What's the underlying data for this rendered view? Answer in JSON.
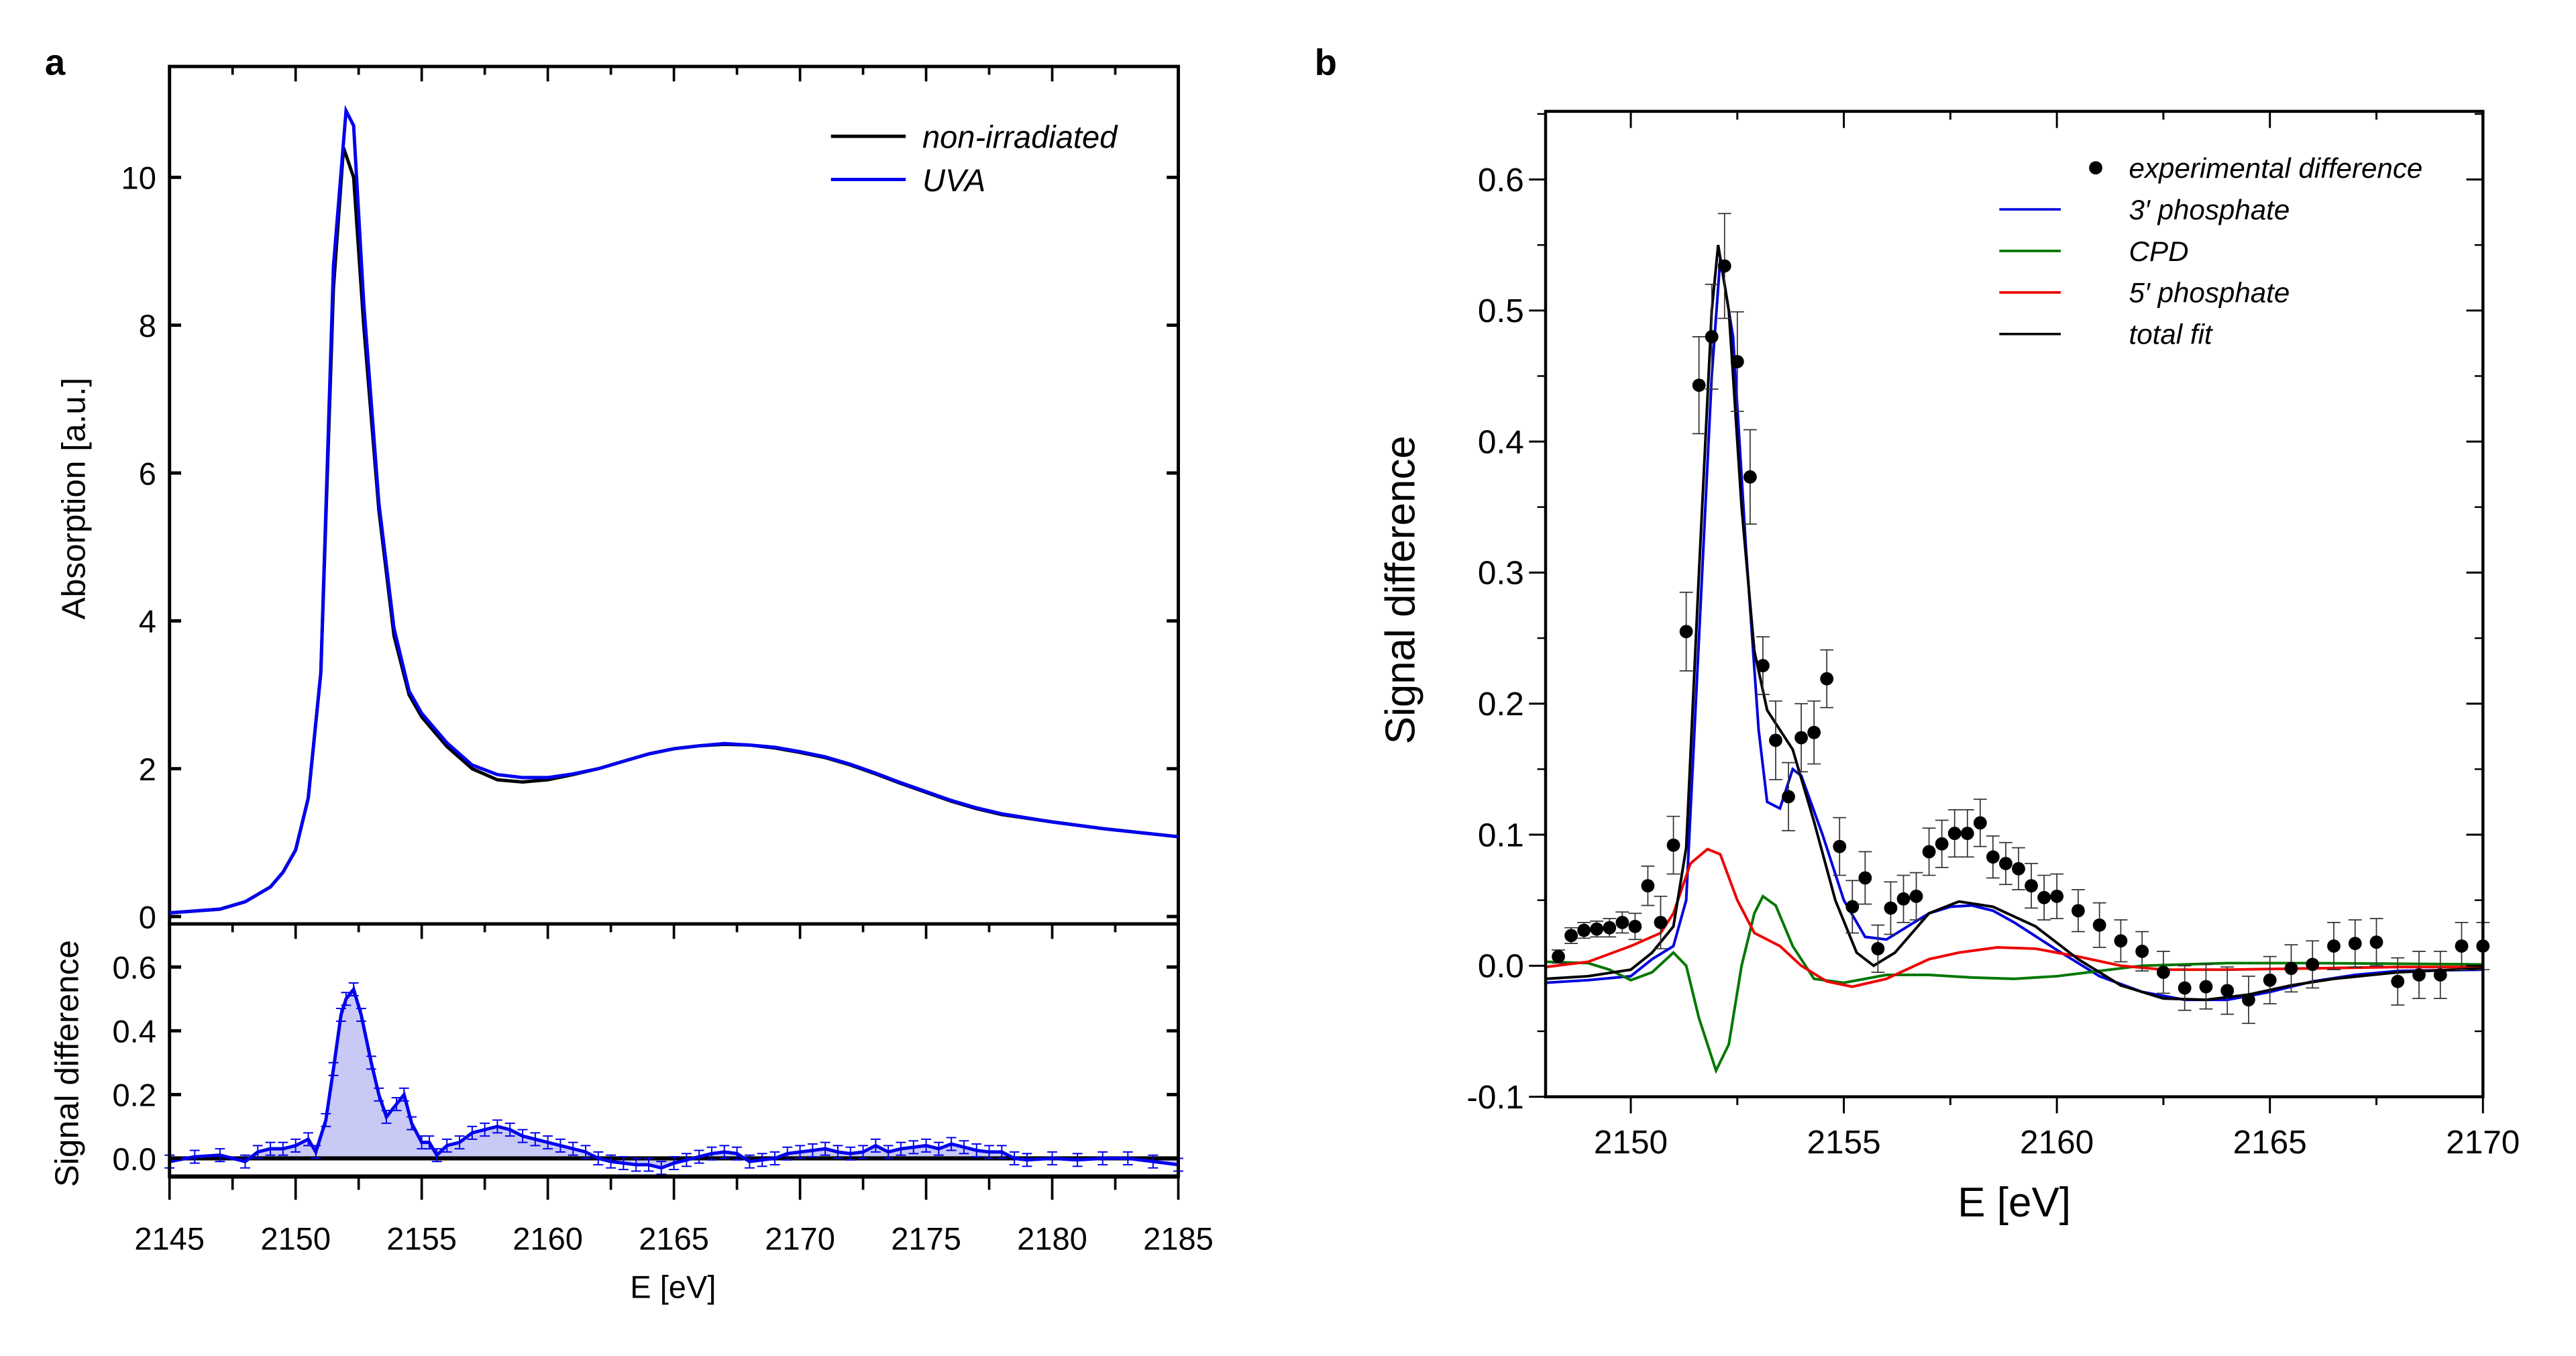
{
  "panels": {
    "a": "a",
    "b": "b"
  },
  "colors": {
    "non_irradiated": "#000000",
    "uva": "#0000ee",
    "uva_fill": "#c9c9f6",
    "experimental": "#000000",
    "phosphate3": "#0000dd",
    "cpd": "#007700",
    "phosphate5": "#ee0000",
    "total_fit": "#000000"
  },
  "chart_data": [
    {
      "id": "a-top",
      "type": "line",
      "title": "",
      "xlabel": "",
      "ylabel": "Absorption [a.u.]",
      "xlim": [
        2145,
        2185
      ],
      "ylim": [
        -0.1,
        11.5
      ],
      "yticks": [
        "0",
        "2",
        "4",
        "6",
        "8",
        "10"
      ],
      "legend_position": "top-right",
      "grid": false,
      "series": [
        {
          "name": "non-irradiated",
          "color": "#000000",
          "x": [
            2145,
            2147,
            2148,
            2149,
            2149.5,
            2150,
            2150.5,
            2151,
            2151.5,
            2151.9,
            2152.3,
            2152.7,
            2153.3,
            2153.9,
            2154.5,
            2155,
            2156,
            2157,
            2158,
            2159,
            2160,
            2161,
            2162,
            2163,
            2164,
            2165,
            2166,
            2167,
            2168,
            2169,
            2170,
            2171,
            2172,
            2173,
            2174,
            2175,
            2176,
            2177,
            2178,
            2180,
            2182,
            2185
          ],
          "y": [
            0.05,
            0.1,
            0.2,
            0.4,
            0.6,
            0.9,
            1.6,
            3.3,
            8.5,
            10.4,
            10.0,
            8.0,
            5.5,
            3.8,
            3.0,
            2.7,
            2.3,
            2.0,
            1.85,
            1.82,
            1.85,
            1.92,
            2.0,
            2.1,
            2.2,
            2.27,
            2.31,
            2.33,
            2.32,
            2.28,
            2.22,
            2.15,
            2.05,
            1.93,
            1.8,
            1.68,
            1.56,
            1.46,
            1.38,
            1.28,
            1.19,
            1.08
          ]
        },
        {
          "name": "UVA",
          "color": "#0000ee",
          "x": [
            2145,
            2147,
            2148,
            2149,
            2149.5,
            2150,
            2150.5,
            2151,
            2151.5,
            2152.0,
            2152.3,
            2152.7,
            2153.3,
            2153.9,
            2154.5,
            2155,
            2156,
            2157,
            2158,
            2159,
            2160,
            2161,
            2162,
            2163,
            2164,
            2165,
            2166,
            2167,
            2168,
            2169,
            2170,
            2171,
            2172,
            2173,
            2174,
            2175,
            2176,
            2177,
            2178,
            2180,
            2182,
            2185
          ],
          "y": [
            0.05,
            0.1,
            0.2,
            0.4,
            0.6,
            0.9,
            1.6,
            3.3,
            8.8,
            10.9,
            10.7,
            8.3,
            5.6,
            3.9,
            3.05,
            2.75,
            2.35,
            2.05,
            1.92,
            1.88,
            1.88,
            1.93,
            2.0,
            2.1,
            2.2,
            2.27,
            2.31,
            2.34,
            2.32,
            2.29,
            2.23,
            2.16,
            2.06,
            1.94,
            1.81,
            1.69,
            1.57,
            1.47,
            1.39,
            1.28,
            1.19,
            1.08
          ]
        }
      ]
    },
    {
      "id": "a-bottom",
      "type": "area",
      "title": "",
      "xlabel": "E [eV]",
      "ylabel": "Signal difference",
      "xlim": [
        2145,
        2185
      ],
      "ylim": [
        -0.057,
        0.735
      ],
      "xticks": [
        "2145",
        "2150",
        "2155",
        "2160",
        "2165",
        "2170",
        "2175",
        "2180",
        "2185"
      ],
      "yticks": [
        "0.0",
        "0.2",
        "0.4",
        "0.6"
      ],
      "grid": false,
      "series": [
        {
          "color": "#0000ee",
          "x": [
            2145,
            2146,
            2147,
            2148,
            2148.5,
            2149,
            2149.5,
            2150,
            2150.5,
            2150.8,
            2151.2,
            2151.5,
            2151.8,
            2152,
            2152.3,
            2152.6,
            2153,
            2153.3,
            2153.6,
            2154,
            2154.3,
            2154.6,
            2155,
            2155.3,
            2155.6,
            2156,
            2156.5,
            2157,
            2157.5,
            2158,
            2158.5,
            2159,
            2159.5,
            2160,
            2160.5,
            2161,
            2161.5,
            2162,
            2162.5,
            2163,
            2163.5,
            2164,
            2164.5,
            2165,
            2165.5,
            2166,
            2166.5,
            2167,
            2167.5,
            2168,
            2168.5,
            2169,
            2169.5,
            2170,
            2170.5,
            2171,
            2171.5,
            2172,
            2172.5,
            2173,
            2173.5,
            2174,
            2174.5,
            2175,
            2175.5,
            2176,
            2176.5,
            2177,
            2177.5,
            2178,
            2178.5,
            2179,
            2180,
            2181,
            2182,
            2183,
            2184,
            2185
          ],
          "y": [
            -0.01,
            0.005,
            0.01,
            -0.01,
            0.02,
            0.03,
            0.03,
            0.04,
            0.06,
            0.02,
            0.12,
            0.28,
            0.45,
            0.5,
            0.53,
            0.45,
            0.3,
            0.2,
            0.13,
            0.17,
            0.2,
            0.11,
            0.05,
            0.05,
            0.01,
            0.04,
            0.05,
            0.08,
            0.09,
            0.1,
            0.09,
            0.07,
            0.06,
            0.05,
            0.04,
            0.03,
            0.02,
            0.0,
            -0.01,
            -0.015,
            -0.02,
            -0.02,
            -0.03,
            -0.015,
            -0.005,
            0.005,
            0.015,
            0.02,
            0.015,
            -0.01,
            -0.005,
            0.0,
            0.015,
            0.02,
            0.025,
            0.03,
            0.02,
            0.015,
            0.02,
            0.04,
            0.02,
            0.03,
            0.035,
            0.04,
            0.03,
            0.045,
            0.035,
            0.025,
            0.02,
            0.02,
            0.0,
            -0.005,
            0.0,
            -0.005,
            0.0,
            0.0,
            -0.01,
            -0.02
          ],
          "error": 0.02
        }
      ]
    },
    {
      "id": "b",
      "type": "scatter",
      "title": "",
      "xlabel": "E [eV]",
      "ylabel": "Signal difference",
      "xlim": [
        2148,
        2170
      ],
      "ylim": [
        -0.1,
        0.652
      ],
      "xticks": [
        "2150",
        "2155",
        "2160",
        "2165",
        "2170"
      ],
      "yticks": [
        "-0.1",
        "0.0",
        "0.1",
        "0.2",
        "0.3",
        "0.4",
        "0.5",
        "0.6"
      ],
      "legend_position": "top-right",
      "grid": false,
      "experimental": {
        "name": "experimental difference",
        "x": [
          2148.3,
          2148.6,
          2148.9,
          2149.2,
          2149.5,
          2149.8,
          2150.1,
          2150.4,
          2150.7,
          2151.0,
          2151.3,
          2151.6,
          2151.9,
          2152.2,
          2152.5,
          2152.8,
          2153.1,
          2153.4,
          2153.7,
          2154.0,
          2154.3,
          2154.6,
          2154.9,
          2155.2,
          2155.5,
          2155.8,
          2156.1,
          2156.4,
          2156.7,
          2157.0,
          2157.3,
          2157.6,
          2157.9,
          2158.2,
          2158.5,
          2158.8,
          2159.1,
          2159.4,
          2159.7,
          2160.0,
          2160.5,
          2161.0,
          2161.5,
          2162.0,
          2162.5,
          2163.0,
          2163.5,
          2164.0,
          2164.5,
          2165.0,
          2165.5,
          2166.0,
          2166.5,
          2167.0,
          2167.5,
          2168.0,
          2168.5,
          2169.0,
          2169.5,
          2170.0
        ],
        "y": [
          0.007,
          0.023,
          0.027,
          0.028,
          0.029,
          0.033,
          0.03,
          0.061,
          0.033,
          0.092,
          0.255,
          0.443,
          0.48,
          0.534,
          0.461,
          0.373,
          0.229,
          0.172,
          0.129,
          0.174,
          0.178,
          0.219,
          0.091,
          0.045,
          0.067,
          0.013,
          0.044,
          0.051,
          0.053,
          0.087,
          0.093,
          0.101,
          0.101,
          0.109,
          0.083,
          0.078,
          0.074,
          0.061,
          0.052,
          0.053,
          0.042,
          0.031,
          0.019,
          0.011,
          -0.005,
          -0.017,
          -0.016,
          -0.019,
          -0.026,
          -0.011,
          -0.002,
          0.001,
          0.015,
          0.017,
          0.018,
          -0.012,
          -0.007,
          -0.007,
          0.015,
          0.015
        ],
        "error": [
          0.005,
          0.006,
          0.006,
          0.006,
          0.007,
          0.008,
          0.01,
          0.015,
          0.02,
          0.022,
          0.03,
          0.037,
          0.04,
          0.04,
          0.038,
          0.036,
          0.022,
          0.03,
          0.026,
          0.026,
          0.024,
          0.022,
          0.022,
          0.02,
          0.02,
          0.018,
          0.02,
          0.018,
          0.018,
          0.018,
          0.018,
          0.018,
          0.018,
          0.018,
          0.016,
          0.016,
          0.016,
          0.017,
          0.017,
          0.017,
          0.016,
          0.017,
          0.016,
          0.015,
          0.016,
          0.017,
          0.017,
          0.018,
          0.018,
          0.018,
          0.018,
          0.018,
          0.018,
          0.018,
          0.018,
          0.018,
          0.018,
          0.018,
          0.018,
          0.018
        ]
      },
      "series": [
        {
          "name": "3′ phosphate",
          "color": "#0000dd",
          "x": [
            2148,
            2149,
            2150,
            2150.5,
            2151,
            2151.3,
            2151.6,
            2151.9,
            2152.1,
            2152.4,
            2152.7,
            2153,
            2153.2,
            2153.5,
            2153.8,
            2154,
            2154.5,
            2155,
            2155.5,
            2156,
            2156.5,
            2157,
            2157.5,
            2158,
            2158.5,
            2159,
            2160,
            2161,
            2162,
            2163,
            2164,
            2165,
            2166,
            2167,
            2168,
            2170
          ],
          "y": [
            -0.013,
            -0.011,
            -0.008,
            0.005,
            0.015,
            0.05,
            0.25,
            0.45,
            0.54,
            0.48,
            0.32,
            0.18,
            0.125,
            0.12,
            0.15,
            0.145,
            0.1,
            0.05,
            0.022,
            0.02,
            0.03,
            0.04,
            0.045,
            0.046,
            0.042,
            0.033,
            0.012,
            -0.008,
            -0.02,
            -0.026,
            -0.026,
            -0.02,
            -0.012,
            -0.007,
            -0.004,
            -0.003
          ]
        },
        {
          "name": "CPD",
          "color": "#007700",
          "x": [
            2148,
            2149,
            2149.5,
            2150,
            2150.5,
            2151,
            2151.3,
            2151.6,
            2152,
            2152.3,
            2152.6,
            2152.9,
            2153.1,
            2153.4,
            2153.8,
            2154.3,
            2155,
            2156,
            2157,
            2158,
            2159,
            2160,
            2161,
            2162,
            2164,
            2166,
            2170
          ],
          "y": [
            0.003,
            0.002,
            -0.003,
            -0.011,
            -0.005,
            0.01,
            0.0,
            -0.04,
            -0.08,
            -0.06,
            0.0,
            0.04,
            0.053,
            0.046,
            0.015,
            -0.01,
            -0.013,
            -0.007,
            -0.007,
            -0.009,
            -0.01,
            -0.008,
            -0.004,
            0.0,
            0.002,
            0.002,
            0.001
          ]
        },
        {
          "name": "5′ phosphate",
          "color": "#ee0000",
          "x": [
            2148,
            2149,
            2150,
            2150.7,
            2151,
            2151.4,
            2151.8,
            2152.1,
            2152.5,
            2152.9,
            2153.5,
            2154,
            2154.6,
            2155.2,
            2156,
            2157,
            2157.7,
            2158.6,
            2159.5,
            2160.5,
            2161.5,
            2162.5,
            2164,
            2166,
            2168,
            2170
          ],
          "y": [
            -0.001,
            0.003,
            0.015,
            0.025,
            0.04,
            0.078,
            0.089,
            0.085,
            0.05,
            0.025,
            0.015,
            0.0,
            -0.012,
            -0.016,
            -0.01,
            0.005,
            0.01,
            0.014,
            0.013,
            0.007,
            0.0,
            -0.003,
            -0.003,
            -0.002,
            -0.001,
            -0.001
          ]
        },
        {
          "name": "total fit",
          "color": "#000000",
          "x": [
            2148,
            2149,
            2150,
            2150.5,
            2151,
            2151.3,
            2151.6,
            2151.9,
            2152.05,
            2152.3,
            2152.6,
            2152.9,
            2153.2,
            2153.5,
            2153.8,
            2154.3,
            2154.8,
            2155.3,
            2155.7,
            2156.2,
            2157,
            2157.7,
            2158.5,
            2159.5,
            2160.5,
            2161.5,
            2162.5,
            2163.5,
            2164.5,
            2165.5,
            2166.5,
            2168,
            2170
          ],
          "y": [
            -0.01,
            -0.008,
            -0.003,
            0.01,
            0.03,
            0.09,
            0.3,
            0.5,
            0.55,
            0.5,
            0.35,
            0.24,
            0.195,
            0.18,
            0.165,
            0.11,
            0.05,
            0.01,
            0.0,
            0.01,
            0.04,
            0.049,
            0.045,
            0.03,
            0.005,
            -0.015,
            -0.025,
            -0.026,
            -0.022,
            -0.015,
            -0.01,
            -0.005,
            -0.002
          ]
        }
      ]
    }
  ]
}
